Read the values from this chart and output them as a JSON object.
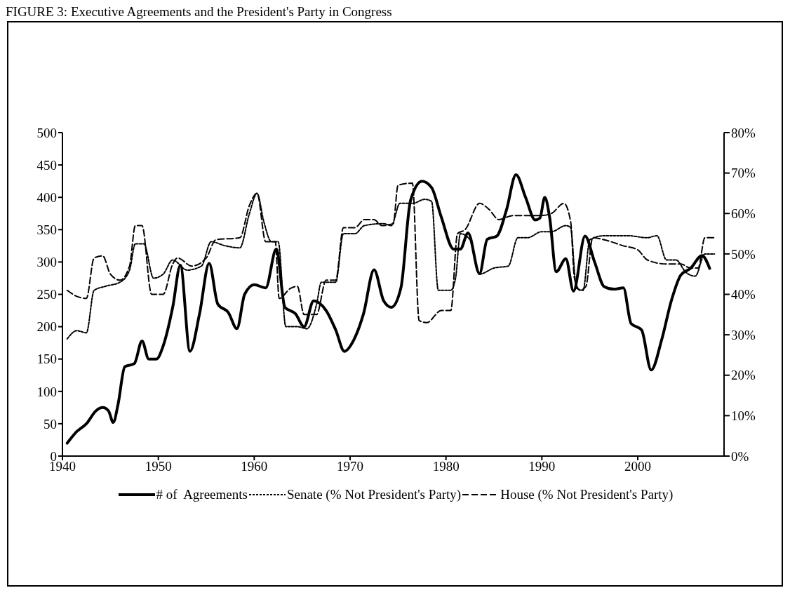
{
  "chart_data": {
    "type": "line",
    "title": "FIGURE 3: Executive Agreements and the President's Party in Congress",
    "legend": "bottom",
    "marker": "none",
    "xlim": [
      1940,
      2009
    ],
    "xticks": [
      1940,
      1950,
      1960,
      1970,
      1980,
      1990,
      2000
    ],
    "ylim": [
      0,
      500
    ],
    "yticks": [
      0,
      50,
      100,
      150,
      200,
      250,
      300,
      350,
      400,
      450,
      500
    ],
    "y2lim": [
      0,
      80
    ],
    "y2ticks": [
      {
        "value": 0,
        "label": "0%"
      },
      {
        "value": 10,
        "label": "10%"
      },
      {
        "value": 20,
        "label": "20%"
      },
      {
        "value": 30,
        "label": "30%"
      },
      {
        "value": 40,
        "label": "40%"
      },
      {
        "value": 50,
        "label": "50%"
      },
      {
        "value": 60,
        "label": "60%"
      },
      {
        "value": 70,
        "label": "70%"
      },
      {
        "value": 80,
        "label": "80%"
      }
    ],
    "series": [
      {
        "name": "# of  Agreements",
        "color": "#000000",
        "line_style": "solid",
        "x": [
          1940.5,
          1941.5,
          1942.5,
          1943.5,
          1944.2,
          1944.8,
          1945.3,
          1945.8,
          1946.5,
          1947.5,
          1948.3,
          1949,
          1949.8,
          1950.5,
          1951.5,
          1952.3,
          1953.3,
          1954.3,
          1955.3,
          1956.2,
          1957.3,
          1958.2,
          1959,
          1960,
          1961.2,
          1962.3,
          1963.2,
          1964.3,
          1965.2,
          1966.2,
          1967.5,
          1968.5,
          1969.4,
          1970.4,
          1971.4,
          1972.5,
          1973.5,
          1974.3,
          1975.3,
          1976.3,
          1977.5,
          1978.5,
          1979.5,
          1980.8,
          1981.5,
          1982.3,
          1983.5,
          1984.3,
          1985.3,
          1986.3,
          1987.3,
          1988.3,
          1989.3,
          1989.8,
          1990.3,
          1990.8,
          1991.5,
          1992.5,
          1993.3,
          1994.5,
          1995.5,
          1996.5,
          1997.5,
          1998.5,
          1999.3,
          2000.4,
          2001.4,
          2002.5,
          2003.5,
          2004.5,
          2005.5,
          2006.7,
          2007.5
        ],
        "values": [
          20,
          38,
          50,
          70,
          75,
          70,
          52,
          80,
          138,
          143,
          178,
          150,
          150,
          170,
          230,
          295,
          162,
          220,
          298,
          235,
          222,
          197,
          250,
          265,
          260,
          320,
          230,
          220,
          200,
          240,
          225,
          195,
          162,
          180,
          220,
          288,
          240,
          230,
          260,
          395,
          425,
          415,
          370,
          320,
          320,
          345,
          282,
          335,
          340,
          380,
          435,
          400,
          365,
          368,
          400,
          370,
          285,
          305,
          255,
          340,
          300,
          262,
          258,
          260,
          205,
          195,
          133,
          180,
          240,
          280,
          290,
          310,
          290
        ]
      },
      {
        "name": "Senate (% Not President's Party)",
        "color": "#000000",
        "line_style": "dotted",
        "axis": "y2",
        "x": [
          1940.5,
          1941.5,
          1942.5,
          1943.3,
          1944.5,
          1946,
          1947,
          1947.6,
          1948.5,
          1949.5,
          1950.5,
          1951.5,
          1953,
          1954.5,
          1955.5,
          1957,
          1958.5,
          1959.5,
          1960.3,
          1961,
          1961.8,
          1962.5,
          1963.3,
          1964.5,
          1965.5,
          1966.5,
          1967,
          1968.5,
          1969.3,
          1970.5,
          1971.5,
          1973.5,
          1974.3,
          1975.2,
          1976.5,
          1977.8,
          1978.5,
          1979.2,
          1980.5,
          1981,
          1981.5,
          1982.5,
          1983.5,
          1985,
          1986.5,
          1987.5,
          1988.5,
          1990,
          1991,
          1992.5,
          1993,
          1993.6,
          1994.3,
          1995,
          1996.5,
          1999,
          2001,
          2002,
          2003,
          2004,
          2005,
          2006,
          2007,
          2008
        ],
        "values": [
          29,
          31,
          30.5,
          41,
          42,
          43,
          46,
          52.5,
          52.5,
          44,
          45,
          48.5,
          46,
          47,
          53,
          52,
          51.5,
          60,
          65,
          58,
          53,
          53,
          32,
          32,
          31.5,
          37.5,
          43,
          43,
          55,
          55,
          57,
          57.5,
          57,
          62.5,
          62.5,
          63.5,
          63,
          41,
          41,
          44,
          55,
          53.5,
          45,
          46.5,
          47,
          54,
          54,
          55.5,
          55.5,
          57,
          56.5,
          41.5,
          41,
          53.5,
          54.5,
          54.5,
          54,
          54.5,
          48.5,
          48.5,
          45.5,
          44.5,
          50,
          50
        ]
      },
      {
        "name": "House (% Not President's Party)",
        "color": "#000000",
        "line_style": "dashed",
        "axis": "y2",
        "x": [
          1940.5,
          1941.5,
          1942.5,
          1943.3,
          1944.2,
          1945,
          1946,
          1947,
          1947.6,
          1948.3,
          1949.3,
          1950.5,
          1951.5,
          1952,
          1953.5,
          1955,
          1956,
          1958.5,
          1959.5,
          1960.3,
          1961.2,
          1962.2,
          1962.6,
          1963.8,
          1964.5,
          1965.2,
          1966.5,
          1967.5,
          1968.5,
          1969.3,
          1970.5,
          1971.5,
          1972.5,
          1973.3,
          1974.5,
          1975,
          1976.5,
          1977.2,
          1978,
          1979.5,
          1980.5,
          1981.2,
          1982,
          1983.5,
          1984.5,
          1985.5,
          1987,
          1990,
          1991,
          1992.3,
          1993,
          1993.4,
          1994,
          1994.6,
          1995.3,
          1996.5,
          1998.5,
          2000,
          2001,
          2003,
          2004.5,
          2005.5,
          2006.3,
          2007,
          2008
        ],
        "values": [
          41,
          39.5,
          39,
          49,
          49.5,
          45,
          43.5,
          47,
          57,
          57,
          40,
          40,
          47.5,
          49,
          47,
          49,
          53.5,
          54,
          62,
          65,
          53,
          53,
          39,
          41.5,
          42,
          35,
          35,
          43.5,
          43.5,
          56.5,
          56.5,
          58.5,
          58.5,
          57,
          57.5,
          67,
          67.5,
          33.5,
          33,
          36,
          36,
          55,
          56,
          62.5,
          61,
          58.5,
          59.5,
          59.5,
          60,
          62.5,
          58,
          44,
          41,
          42,
          54,
          53.5,
          52,
          51,
          48.5,
          47.5,
          47.5,
          46.5,
          46.5,
          54,
          54
        ]
      }
    ]
  }
}
